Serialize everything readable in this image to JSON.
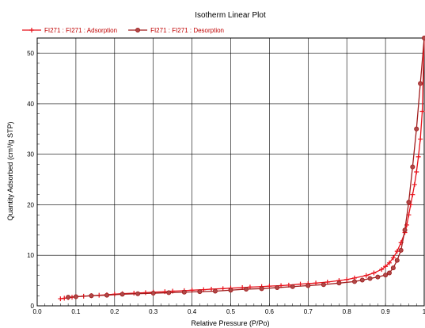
{
  "chart_data": {
    "type": "line",
    "title": "Isotherm Linear Plot",
    "xlabel": "Relative Pressure (P/Po)",
    "ylabel": "Quantity Adsorbed (cm³/g STP)",
    "xlim": [
      0,
      1.0
    ],
    "ylim": [
      0,
      53
    ],
    "x_ticks": [
      0.0,
      0.1,
      0.2,
      0.3,
      0.4,
      0.5,
      0.6,
      0.7,
      0.8,
      0.9,
      1.0
    ],
    "x_tick_labels": [
      "0.0",
      "0.1",
      "0.2",
      "0.3",
      "0.4",
      "0.5",
      "0.6",
      "0.7",
      "0.8",
      "0.9",
      "1"
    ],
    "y_ticks": [
      0,
      10,
      20,
      30,
      40,
      50
    ],
    "y_tick_labels": [
      "0",
      "10",
      "20",
      "30",
      "40",
      "50"
    ],
    "grid": true,
    "legend_position": "top-left",
    "series": [
      {
        "name": "FI271 : FI271 : Adsorption",
        "color": "#e8101a",
        "marker": "plus",
        "x": [
          0.06,
          0.07,
          0.08,
          0.09,
          0.1,
          0.12,
          0.14,
          0.16,
          0.18,
          0.2,
          0.22,
          0.25,
          0.28,
          0.3,
          0.33,
          0.35,
          0.38,
          0.4,
          0.43,
          0.45,
          0.48,
          0.5,
          0.53,
          0.55,
          0.58,
          0.6,
          0.63,
          0.65,
          0.68,
          0.7,
          0.72,
          0.75,
          0.78,
          0.8,
          0.82,
          0.85,
          0.87,
          0.89,
          0.9,
          0.91,
          0.92,
          0.93,
          0.94,
          0.95,
          0.955,
          0.96,
          0.965,
          0.97,
          0.975,
          0.98,
          0.985,
          0.99,
          0.995,
          1.0
        ],
        "y": [
          1.4,
          1.5,
          1.6,
          1.7,
          1.8,
          1.9,
          2.0,
          2.1,
          2.2,
          2.3,
          2.4,
          2.5,
          2.6,
          2.7,
          2.8,
          2.9,
          3.0,
          3.1,
          3.2,
          3.3,
          3.4,
          3.5,
          3.6,
          3.7,
          3.8,
          3.9,
          4.0,
          4.1,
          4.3,
          4.4,
          4.5,
          4.7,
          5.0,
          5.2,
          5.5,
          6.0,
          6.5,
          7.2,
          7.8,
          8.5,
          9.5,
          10.8,
          12.5,
          14.5,
          16.0,
          18.0,
          20.0,
          22.0,
          24.0,
          26.5,
          29.5,
          33.0,
          38.5,
          53.0
        ]
      },
      {
        "name": "FI271 : FI271 : Desorption",
        "color": "#a01c1c",
        "marker": "circle",
        "x": [
          1.0,
          0.99,
          0.98,
          0.97,
          0.96,
          0.95,
          0.94,
          0.93,
          0.92,
          0.91,
          0.9,
          0.88,
          0.86,
          0.84,
          0.82,
          0.78,
          0.74,
          0.7,
          0.66,
          0.62,
          0.58,
          0.54,
          0.5,
          0.46,
          0.42,
          0.38,
          0.34,
          0.3,
          0.26,
          0.22,
          0.18,
          0.14,
          0.1,
          0.08
        ],
        "y": [
          53.0,
          44.0,
          35.0,
          27.5,
          20.5,
          15.0,
          11.0,
          9.0,
          7.5,
          6.5,
          6.1,
          5.7,
          5.4,
          5.1,
          4.8,
          4.5,
          4.2,
          4.0,
          3.8,
          3.6,
          3.4,
          3.3,
          3.1,
          2.9,
          2.8,
          2.7,
          2.6,
          2.5,
          2.4,
          2.3,
          2.1,
          2.0,
          1.8,
          1.7
        ]
      }
    ]
  }
}
